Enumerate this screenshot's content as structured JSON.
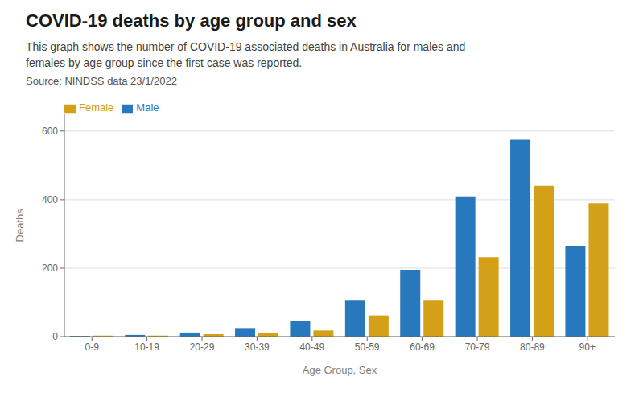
{
  "chart_data": {
    "type": "bar",
    "title": "COVID-19 deaths by age group and sex",
    "subtitle": "This graph shows the number of COVID-19 associated deaths in Australia for males and\nfemales by age group since the first case was reported.",
    "source": "Source: NINDSS data 23/1/2022",
    "xlabel": "Age Group, Sex",
    "ylabel": "Deaths",
    "categories": [
      "0-9",
      "10-19",
      "20-29",
      "30-39",
      "40-49",
      "50-59",
      "60-69",
      "70-79",
      "80-89",
      "90+"
    ],
    "series": [
      {
        "name": "Male",
        "color": "#2878bd",
        "values": [
          2,
          5,
          12,
          25,
          45,
          105,
          195,
          410,
          575,
          265
        ]
      },
      {
        "name": "Female",
        "color": "#d4a017",
        "values": [
          3,
          3,
          7,
          10,
          18,
          62,
          105,
          232,
          440,
          390
        ]
      }
    ],
    "ylim": [
      0,
      650
    ],
    "yticks": [
      0,
      200,
      400,
      600
    ],
    "grid": true,
    "legend": "upper left"
  }
}
